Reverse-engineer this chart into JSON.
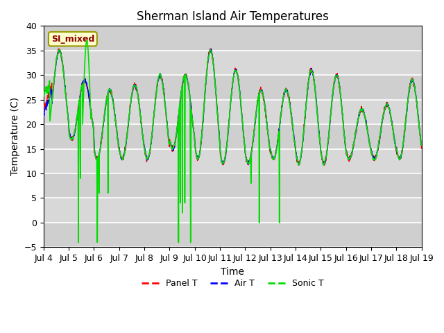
{
  "title": "Sherman Island Air Temperatures",
  "xlabel": "Time",
  "ylabel": "Temperature (C)",
  "ylim": [
    -5,
    40
  ],
  "yticks": [
    -5,
    0,
    5,
    10,
    15,
    20,
    25,
    30,
    35,
    40
  ],
  "xtick_labels": [
    "Jul 4",
    "Jul 5",
    "Jul 6",
    "Jul 7",
    "Jul 8",
    "Jul 9",
    "Jul 10",
    "Jul 11",
    "Jul 12",
    "Jul 13",
    "Jul 14",
    "Jul 15",
    "Jul 16",
    "Jul 17",
    "Jul 18",
    "Jul 19"
  ],
  "annotation_text": "SI_mixed",
  "bg_color": "#e0e0e0",
  "stripe_color": "#cccccc",
  "panel_color": "#ff0000",
  "air_color": "#0000ff",
  "sonic_color": "#00dd00",
  "legend_labels": [
    "Panel T",
    "Air T",
    "Sonic T"
  ],
  "title_fontsize": 12,
  "axis_fontsize": 10,
  "tick_fontsize": 9
}
